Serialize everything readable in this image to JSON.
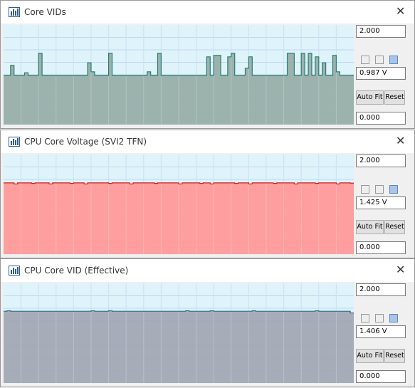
{
  "windows": [
    {
      "title": "Core VIDs",
      "max": "2.000",
      "min": "0.000",
      "current": "0.987 V",
      "buttons": [
        "Auto Fit",
        "Reset"
      ],
      "values": [
        0.987,
        0.987,
        1.19,
        0.987,
        0.987,
        0.987,
        1.04,
        0.987,
        0.987,
        0.987,
        1.43,
        0.987,
        0.987,
        0.987,
        0.987,
        0.987,
        0.987,
        0.987,
        0.987,
        0.987,
        0.987,
        0.987,
        0.987,
        0.987,
        1.24,
        1.06,
        0.987,
        0.987,
        0.987,
        0.987,
        1.43,
        0.987,
        0.987,
        0.987,
        0.987,
        0.987,
        0.987,
        0.987,
        0.987,
        0.987,
        0.987,
        1.06,
        0.987,
        0.987,
        1.43,
        0.987,
        0.987,
        0.987,
        0.987,
        0.987,
        0.987,
        0.987,
        0.987,
        0.987,
        0.987,
        0.987,
        0.987,
        0.987,
        1.36,
        0.987,
        1.39,
        1.39,
        0.987,
        0.987,
        1.36,
        1.43,
        0.987,
        0.987,
        0.987,
        1.13,
        1.36,
        0.987,
        0.987,
        0.987,
        0.987,
        0.987,
        0.987,
        0.987,
        0.987,
        0.987,
        0.987,
        1.43,
        1.43,
        0.987,
        0.987,
        1.43,
        0.987,
        1.43,
        0.987,
        1.36,
        0.987,
        1.24,
        0.987,
        0.987,
        1.39,
        1.06,
        0.987,
        0.987,
        0.987,
        0.987
      ]
    },
    {
      "title": "CPU Core Voltage (SVI2 TFN)",
      "max": "2.000",
      "min": "0.000",
      "current": "1.425 V",
      "buttons": [
        "Auto Fit",
        "Reset"
      ],
      "values": [
        1.43,
        1.43,
        1.43,
        1.41,
        1.43,
        1.43,
        1.43,
        1.43,
        1.42,
        1.43,
        1.43,
        1.43,
        1.43,
        1.41,
        1.43,
        1.43,
        1.43,
        1.43,
        1.43,
        1.42,
        1.43,
        1.43,
        1.43,
        1.41,
        1.43,
        1.43,
        1.43,
        1.43,
        1.43,
        1.43,
        1.42,
        1.43,
        1.43,
        1.43,
        1.43,
        1.43,
        1.41,
        1.43,
        1.43,
        1.43,
        1.43,
        1.43,
        1.43,
        1.42,
        1.43,
        1.43,
        1.43,
        1.43,
        1.43,
        1.43,
        1.41,
        1.43,
        1.43,
        1.43,
        1.43,
        1.43,
        1.42,
        1.43,
        1.43,
        1.41,
        1.43,
        1.43,
        1.43,
        1.43,
        1.43,
        1.43,
        1.42,
        1.43,
        1.43,
        1.43,
        1.41,
        1.43,
        1.43,
        1.43,
        1.43,
        1.43,
        1.43,
        1.42,
        1.43,
        1.43,
        1.43,
        1.43,
        1.43,
        1.41,
        1.43,
        1.43,
        1.43,
        1.43,
        1.43,
        1.42,
        1.43,
        1.43,
        1.43,
        1.43,
        1.43,
        1.41,
        1.43,
        1.43,
        1.43,
        1.425
      ]
    },
    {
      "title": "CPU Core VID (Effective)",
      "max": "2.000",
      "min": "0.000",
      "current": "1.406 V",
      "buttons": [
        "Auto Fit",
        "Reset"
      ],
      "values": [
        1.44,
        1.45,
        1.44,
        1.44,
        1.44,
        1.44,
        1.44,
        1.44,
        1.44,
        1.44,
        1.44,
        1.44,
        1.44,
        1.44,
        1.44,
        1.44,
        1.44,
        1.44,
        1.44,
        1.44,
        1.44,
        1.44,
        1.44,
        1.44,
        1.44,
        1.45,
        1.44,
        1.44,
        1.44,
        1.44,
        1.45,
        1.44,
        1.44,
        1.44,
        1.44,
        1.44,
        1.44,
        1.44,
        1.44,
        1.44,
        1.44,
        1.44,
        1.44,
        1.44,
        1.44,
        1.44,
        1.44,
        1.44,
        1.44,
        1.44,
        1.44,
        1.44,
        1.45,
        1.44,
        1.44,
        1.44,
        1.44,
        1.44,
        1.44,
        1.45,
        1.44,
        1.44,
        1.44,
        1.44,
        1.44,
        1.44,
        1.44,
        1.44,
        1.44,
        1.44,
        1.44,
        1.45,
        1.44,
        1.44,
        1.44,
        1.44,
        1.44,
        1.44,
        1.44,
        1.44,
        1.44,
        1.44,
        1.44,
        1.44,
        1.44,
        1.44,
        1.44,
        1.44,
        1.44,
        1.45,
        1.44,
        1.44,
        1.44,
        1.44,
        1.44,
        1.44,
        1.44,
        1.44,
        1.44,
        1.406
      ]
    }
  ]
}
